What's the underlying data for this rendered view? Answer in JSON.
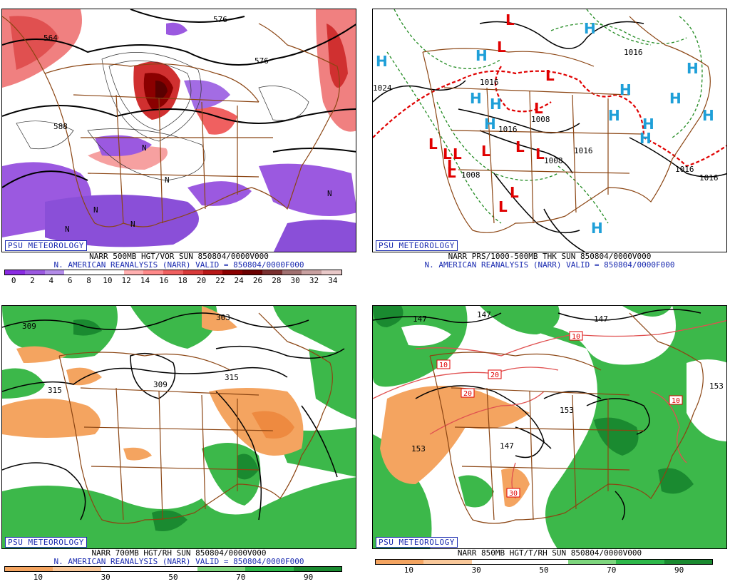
{
  "badge": "PSU METEOROLOGY",
  "panels": [
    {
      "caption1": "NARR 500MB HGT/VOR SUN 850804/0000V000",
      "caption2": "N. AMERICAN REANALYSIS (NARR) VALID = 850804/0000F000",
      "colorbar_ticks": [
        "0",
        "2",
        "4",
        "6",
        "8",
        "10",
        "12",
        "14",
        "16",
        "18",
        "20",
        "22",
        "24",
        "26",
        "28",
        "30",
        "32",
        "34"
      ],
      "contour_labels": [
        "564",
        "576",
        "588",
        "576"
      ],
      "colors": [
        "#8a2be2",
        "#9b59e0",
        "#b38ce8",
        "#ffffff",
        "#ffffff",
        "#ffffff",
        "#ffb0b0",
        "#ff8a8a",
        "#f06060",
        "#d83a3a",
        "#b81818",
        "#8b0000",
        "#6b0000",
        "#7a3030",
        "#a07070",
        "#c8a0a0",
        "#e8c8c8"
      ]
    },
    {
      "caption1": "NARR PRS/1000-500MB THK SUN 850804/0000V000",
      "caption2": "N. AMERICAN REANALYSIS (NARR) VALID = 850804/0000F000",
      "contour_labels": [
        "1024",
        "1016",
        "1016",
        "1008",
        "1008",
        "1008",
        "1016",
        "1016",
        "1016",
        "1016"
      ],
      "high_symbol": "H",
      "low_symbol": "L"
    },
    {
      "caption1": "NARR 700MB HGT/RH SUN 850804/0000V000",
      "caption2": "N. AMERICAN REANALYSIS (NARR) VALID = 850804/0000F000",
      "colorbar_ticks": [
        "10",
        "30",
        "50",
        "70",
        "90"
      ],
      "contour_labels": [
        "309",
        "303",
        "315",
        "309",
        "315"
      ],
      "colors": [
        "#f4a460",
        "#f9c89a",
        "#ffffff",
        "#ffffff",
        "#7ed67e",
        "#2db84a",
        "#1a8a30"
      ]
    },
    {
      "caption1": "NARR 850MB HGT/T/RH SUN 850804/0000V000",
      "caption2": "",
      "colorbar_ticks": [
        "10",
        "30",
        "50",
        "70",
        "90"
      ],
      "contour_labels": [
        "147",
        "147",
        "147",
        "153",
        "153",
        "153",
        "147"
      ],
      "temp_labels": [
        "10",
        "20",
        "20",
        "10",
        "10",
        "30"
      ]
    }
  ]
}
